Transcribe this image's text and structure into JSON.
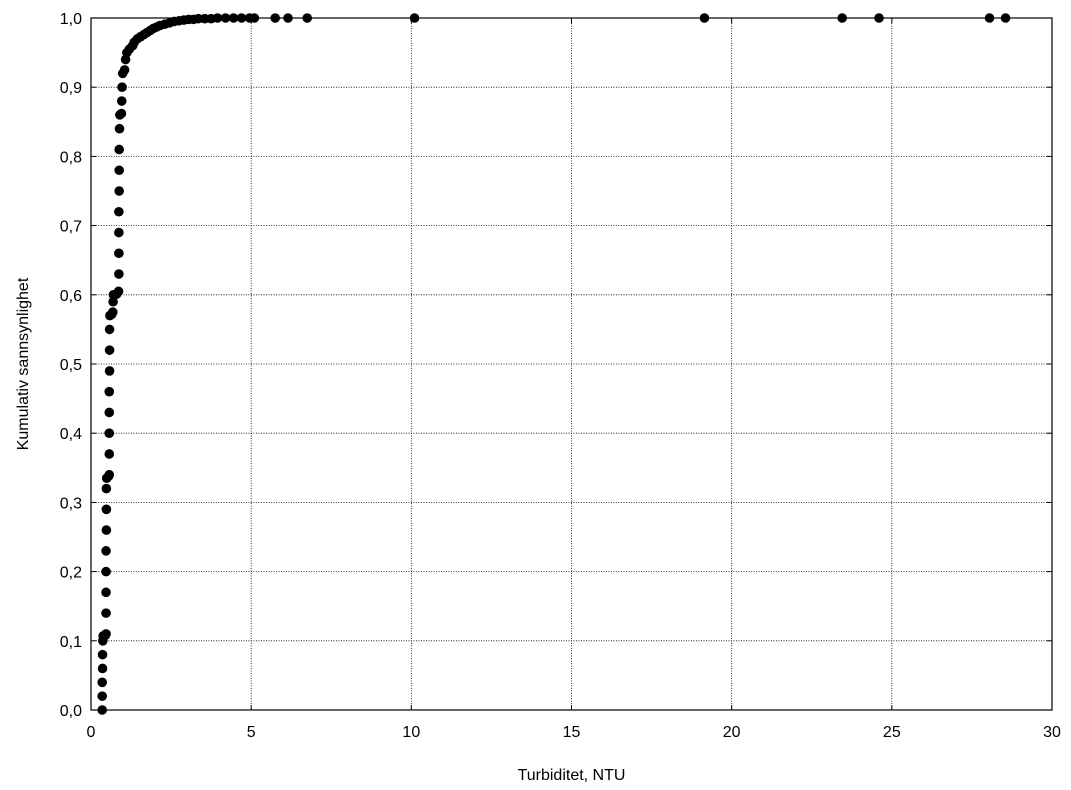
{
  "chart_data": {
    "type": "scatter",
    "title": "",
    "xlabel": "Turbiditet, NTU",
    "ylabel": "Kumulativ sannsynlighet",
    "xlim": [
      0,
      30
    ],
    "ylim": [
      0,
      1
    ],
    "x_ticks": [
      0,
      5,
      10,
      15,
      20,
      25,
      30
    ],
    "x_tick_labels": [
      "0",
      "5",
      "10",
      "15",
      "20",
      "25",
      "30"
    ],
    "y_ticks": [
      0,
      0.1,
      0.2,
      0.3,
      0.4,
      0.5,
      0.6,
      0.7,
      0.8,
      0.9,
      1.0
    ],
    "y_tick_labels": [
      "0,0",
      "0,1",
      "0,2",
      "0,3",
      "0,4",
      "0,5",
      "0,6",
      "0,7",
      "0,8",
      "0,9",
      "1,0"
    ],
    "grid": true,
    "marker_color": "#000000",
    "series": [
      {
        "points": [
          [
            0.35,
            0.0
          ],
          [
            0.35,
            0.02
          ],
          [
            0.35,
            0.04
          ],
          [
            0.36,
            0.06
          ],
          [
            0.36,
            0.08
          ],
          [
            0.37,
            0.1
          ],
          [
            0.38,
            0.107
          ],
          [
            0.45,
            0.108
          ],
          [
            0.47,
            0.11
          ],
          [
            0.47,
            0.14
          ],
          [
            0.47,
            0.17
          ],
          [
            0.47,
            0.2
          ],
          [
            0.47,
            0.23
          ],
          [
            0.48,
            0.26
          ],
          [
            0.48,
            0.29
          ],
          [
            0.48,
            0.32
          ],
          [
            0.49,
            0.335
          ],
          [
            0.55,
            0.338
          ],
          [
            0.57,
            0.34
          ],
          [
            0.57,
            0.37
          ],
          [
            0.57,
            0.4
          ],
          [
            0.57,
            0.43
          ],
          [
            0.57,
            0.46
          ],
          [
            0.58,
            0.49
          ],
          [
            0.58,
            0.52
          ],
          [
            0.58,
            0.55
          ],
          [
            0.59,
            0.57
          ],
          [
            0.65,
            0.572
          ],
          [
            0.68,
            0.575
          ],
          [
            0.69,
            0.59
          ],
          [
            0.7,
            0.6
          ],
          [
            0.8,
            0.601
          ],
          [
            0.86,
            0.605
          ],
          [
            0.87,
            0.63
          ],
          [
            0.87,
            0.66
          ],
          [
            0.87,
            0.69
          ],
          [
            0.87,
            0.72
          ],
          [
            0.88,
            0.75
          ],
          [
            0.88,
            0.78
          ],
          [
            0.88,
            0.81
          ],
          [
            0.89,
            0.84
          ],
          [
            0.9,
            0.86
          ],
          [
            0.95,
            0.862
          ],
          [
            0.96,
            0.88
          ],
          [
            0.97,
            0.9
          ],
          [
            0.99,
            0.92
          ],
          [
            1.05,
            0.925
          ],
          [
            1.08,
            0.94
          ],
          [
            1.12,
            0.95
          ],
          [
            1.2,
            0.955
          ],
          [
            1.3,
            0.96
          ],
          [
            1.35,
            0.965
          ],
          [
            1.45,
            0.97
          ],
          [
            1.55,
            0.973
          ],
          [
            1.65,
            0.976
          ],
          [
            1.75,
            0.979
          ],
          [
            1.85,
            0.982
          ],
          [
            1.95,
            0.985
          ],
          [
            2.05,
            0.987
          ],
          [
            2.15,
            0.989
          ],
          [
            2.3,
            0.991
          ],
          [
            2.45,
            0.993
          ],
          [
            2.6,
            0.995
          ],
          [
            2.75,
            0.996
          ],
          [
            2.9,
            0.997
          ],
          [
            3.05,
            0.998
          ],
          [
            3.2,
            0.998
          ],
          [
            3.35,
            0.999
          ],
          [
            3.55,
            0.999
          ],
          [
            3.75,
            0.999
          ],
          [
            3.95,
            1.0
          ],
          [
            4.2,
            1.0
          ],
          [
            4.45,
            1.0
          ],
          [
            4.7,
            1.0
          ],
          [
            4.95,
            1.0
          ],
          [
            5.1,
            1.0
          ],
          [
            5.75,
            1.0
          ],
          [
            6.15,
            1.0
          ],
          [
            6.75,
            1.0
          ],
          [
            10.1,
            1.0
          ],
          [
            19.15,
            1.0
          ],
          [
            23.45,
            1.0
          ],
          [
            24.6,
            1.0
          ],
          [
            28.05,
            1.0
          ],
          [
            28.55,
            1.0
          ]
        ]
      }
    ]
  }
}
